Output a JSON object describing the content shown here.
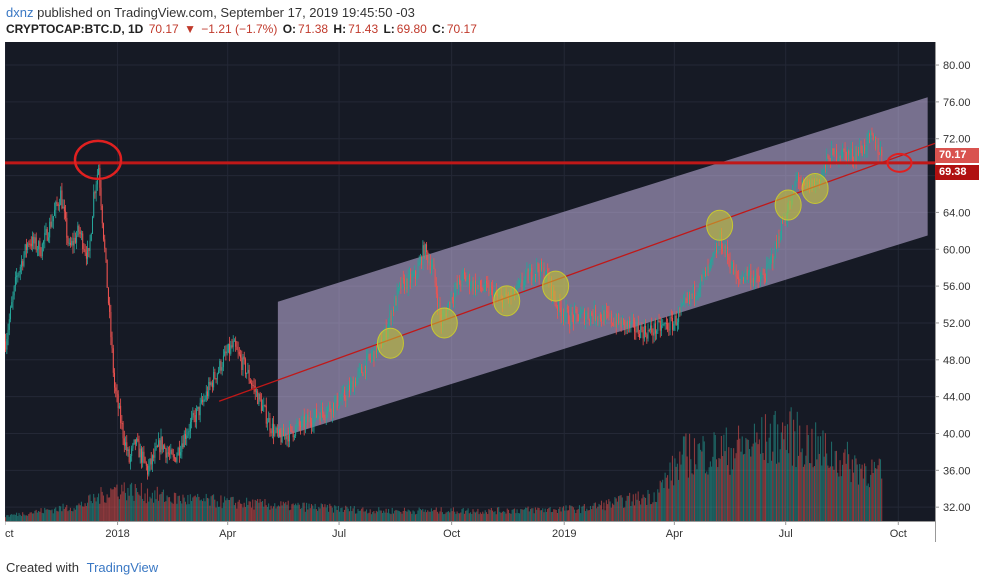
{
  "header": {
    "author": "dxnz",
    "published": "published on TradingView.com, September 17, 2019 19:45:50 -03",
    "symbol": "CRYPTOCAP:BTC.D, 1D",
    "last": "70.17",
    "change_arrow": "▼",
    "change": "−1.21 (−1.7%)",
    "open_label": "O:",
    "open": "71.38",
    "high_label": "H:",
    "high": "71.43",
    "low_label": "L:",
    "low": "69.80",
    "close_label": "C:",
    "close": "70.17"
  },
  "footer": {
    "created_with": "Created with",
    "brand": "TradingView"
  },
  "price_tags": {
    "current": "70.17",
    "line": "69.38"
  },
  "colors": {
    "background": "#161a25",
    "bull": "#26a69a",
    "bear": "#ef5350",
    "channel": "#c9b8e6",
    "hline": "#c01818",
    "trend": "#c01818",
    "touch": "#c8c830"
  },
  "chart_data": {
    "type": "candlestick",
    "y_ticks": [
      32,
      36,
      40,
      44,
      48,
      52,
      56,
      60,
      64,
      68,
      72,
      76,
      80
    ],
    "y_tick_labels": [
      "32.00",
      "36.00",
      "40.00",
      "44.00",
      "48.00",
      "52.00",
      "56.00",
      "60.00",
      "64.00",
      "72.00",
      "76.00",
      "80.00"
    ],
    "ylim": [
      30.5,
      82.5
    ],
    "x_ticks": [
      "Oct",
      "2018",
      "Apr",
      "Jul",
      "Oct",
      "2019",
      "Apr",
      "Jul",
      "Oct"
    ],
    "x_tick_dates": [
      "2017-10-01",
      "2018-01-01",
      "2018-04-01",
      "2018-07-01",
      "2018-10-01",
      "2019-01-01",
      "2019-04-01",
      "2019-07-01",
      "2019-10-01"
    ],
    "xlim": [
      "2017-10-01",
      "2019-10-31"
    ],
    "price_path": [
      {
        "date": "2017-10-01",
        "value": 50
      },
      {
        "date": "2017-10-10",
        "value": 57
      },
      {
        "date": "2017-10-20",
        "value": 61
      },
      {
        "date": "2017-10-30",
        "value": 60
      },
      {
        "date": "2017-11-10",
        "value": 64
      },
      {
        "date": "2017-11-15",
        "value": 66
      },
      {
        "date": "2017-11-22",
        "value": 60
      },
      {
        "date": "2017-11-30",
        "value": 62
      },
      {
        "date": "2017-12-08",
        "value": 59
      },
      {
        "date": "2017-12-12",
        "value": 66
      },
      {
        "date": "2017-12-16",
        "value": 69
      },
      {
        "date": "2017-12-22",
        "value": 58
      },
      {
        "date": "2017-12-29",
        "value": 45
      },
      {
        "date": "2018-01-05",
        "value": 40
      },
      {
        "date": "2018-01-10",
        "value": 37
      },
      {
        "date": "2018-01-15",
        "value": 39
      },
      {
        "date": "2018-01-25",
        "value": 36
      },
      {
        "date": "2018-02-05",
        "value": 39
      },
      {
        "date": "2018-02-15",
        "value": 37
      },
      {
        "date": "2018-02-25",
        "value": 40
      },
      {
        "date": "2018-03-10",
        "value": 43
      },
      {
        "date": "2018-03-20",
        "value": 46
      },
      {
        "date": "2018-03-30",
        "value": 48.5
      },
      {
        "date": "2018-04-05",
        "value": 49.5
      },
      {
        "date": "2018-04-15",
        "value": 47
      },
      {
        "date": "2018-04-25",
        "value": 44
      },
      {
        "date": "2018-05-05",
        "value": 41
      },
      {
        "date": "2018-05-12",
        "value": 39.5
      },
      {
        "date": "2018-05-20",
        "value": 40
      },
      {
        "date": "2018-06-01",
        "value": 41
      },
      {
        "date": "2018-06-12",
        "value": 42
      },
      {
        "date": "2018-06-25",
        "value": 43
      },
      {
        "date": "2018-07-05",
        "value": 44
      },
      {
        "date": "2018-07-15",
        "value": 46
      },
      {
        "date": "2018-07-25",
        "value": 48
      },
      {
        "date": "2018-08-05",
        "value": 50
      },
      {
        "date": "2018-08-12",
        "value": 53
      },
      {
        "date": "2018-08-20",
        "value": 56
      },
      {
        "date": "2018-09-01",
        "value": 57
      },
      {
        "date": "2018-09-08",
        "value": 60
      },
      {
        "date": "2018-09-15",
        "value": 58
      },
      {
        "date": "2018-09-22",
        "value": 52
      },
      {
        "date": "2018-10-01",
        "value": 55
      },
      {
        "date": "2018-10-10",
        "value": 57
      },
      {
        "date": "2018-10-20",
        "value": 56
      },
      {
        "date": "2018-11-01",
        "value": 55.5
      },
      {
        "date": "2018-11-10",
        "value": 54.5
      },
      {
        "date": "2018-11-20",
        "value": 55
      },
      {
        "date": "2018-12-01",
        "value": 57
      },
      {
        "date": "2018-12-10",
        "value": 58
      },
      {
        "date": "2018-12-18",
        "value": 57
      },
      {
        "date": "2018-12-25",
        "value": 54
      },
      {
        "date": "2019-01-05",
        "value": 52.5
      },
      {
        "date": "2019-01-15",
        "value": 52.8
      },
      {
        "date": "2019-01-25",
        "value": 53
      },
      {
        "date": "2019-02-05",
        "value": 52.5
      },
      {
        "date": "2019-02-15",
        "value": 52
      },
      {
        "date": "2019-02-25",
        "value": 51.5
      },
      {
        "date": "2019-03-10",
        "value": 51
      },
      {
        "date": "2019-03-20",
        "value": 51.5
      },
      {
        "date": "2019-03-31",
        "value": 52
      },
      {
        "date": "2019-04-10",
        "value": 54
      },
      {
        "date": "2019-04-20",
        "value": 56
      },
      {
        "date": "2019-04-30",
        "value": 58
      },
      {
        "date": "2019-05-08",
        "value": 61
      },
      {
        "date": "2019-05-15",
        "value": 59
      },
      {
        "date": "2019-05-22",
        "value": 56.5
      },
      {
        "date": "2019-05-30",
        "value": 57.5
      },
      {
        "date": "2019-06-08",
        "value": 56.5
      },
      {
        "date": "2019-06-15",
        "value": 57.5
      },
      {
        "date": "2019-06-22",
        "value": 60
      },
      {
        "date": "2019-06-28",
        "value": 63
      },
      {
        "date": "2019-07-05",
        "value": 65
      },
      {
        "date": "2019-07-10",
        "value": 68
      },
      {
        "date": "2019-07-15",
        "value": 66.5
      },
      {
        "date": "2019-07-22",
        "value": 67
      },
      {
        "date": "2019-07-30",
        "value": 68
      },
      {
        "date": "2019-08-05",
        "value": 70
      },
      {
        "date": "2019-08-15",
        "value": 70.5
      },
      {
        "date": "2019-08-25",
        "value": 70.2
      },
      {
        "date": "2019-09-02",
        "value": 71
      },
      {
        "date": "2019-09-08",
        "value": 72
      },
      {
        "date": "2019-09-12",
        "value": 71.5
      },
      {
        "date": "2019-09-17",
        "value": 70.17
      }
    ],
    "volume_levels": [
      {
        "date": "2017-10-01",
        "value": 0.05
      },
      {
        "date": "2017-12-01",
        "value": 0.15
      },
      {
        "date": "2017-12-31",
        "value": 0.32
      },
      {
        "date": "2018-02-15",
        "value": 0.22
      },
      {
        "date": "2018-05-01",
        "value": 0.16
      },
      {
        "date": "2018-08-01",
        "value": 0.1
      },
      {
        "date": "2018-11-01",
        "value": 0.1
      },
      {
        "date": "2019-01-15",
        "value": 0.12
      },
      {
        "date": "2019-03-15",
        "value": 0.25
      },
      {
        "date": "2019-04-10",
        "value": 0.65
      },
      {
        "date": "2019-05-20",
        "value": 0.7
      },
      {
        "date": "2019-07-01",
        "value": 0.85
      },
      {
        "date": "2019-08-15",
        "value": 0.6
      },
      {
        "date": "2019-09-17",
        "value": 0.45
      }
    ],
    "channel": {
      "lower": [
        {
          "date": "2018-05-12",
          "value": 39.5
        },
        {
          "date": "2019-10-25",
          "value": 61.5
        }
      ],
      "upper": [
        {
          "date": "2018-05-12",
          "value": 54.3
        },
        {
          "date": "2019-10-25",
          "value": 76.5
        }
      ]
    },
    "trendline": [
      {
        "date": "2018-03-25",
        "value": 43.5
      },
      {
        "date": "2019-10-31",
        "value": 71.5
      }
    ],
    "hline": 69.38,
    "touch_points": [
      {
        "date": "2018-08-12",
        "value": 49.8
      },
      {
        "date": "2018-09-25",
        "value": 52
      },
      {
        "date": "2018-11-15",
        "value": 54.4
      },
      {
        "date": "2018-12-25",
        "value": 56
      },
      {
        "date": "2019-05-08",
        "value": 62.6
      },
      {
        "date": "2019-07-03",
        "value": 64.8
      },
      {
        "date": "2019-07-25",
        "value": 66.6
      }
    ],
    "red_circles": [
      {
        "date": "2017-12-16",
        "value": 69.7
      },
      {
        "date": "2019-10-02",
        "value": 69.38
      }
    ]
  }
}
